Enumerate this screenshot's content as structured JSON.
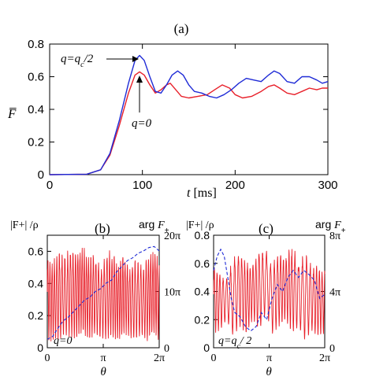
{
  "chart_data": [
    {
      "panel": "(a)",
      "type": "line",
      "title": "(a)",
      "ylabel": "F̅",
      "xlabel": "t [ms]",
      "xlim": [
        0,
        300
      ],
      "ylim": [
        0,
        0.8
      ],
      "xticks": [
        "0",
        "100",
        "200",
        "300"
      ],
      "yticks": [
        "0",
        "0.2",
        "0.4",
        "0.6",
        "0.8"
      ],
      "grid": false,
      "annotations": [
        {
          "text": "q=q_c/2",
          "display": "q=qc/2"
        },
        {
          "text": "q=0",
          "display": "q=0"
        }
      ],
      "series": [
        {
          "name": "q=0",
          "color": "#e8202a",
          "points": [
            [
              0,
              0
            ],
            [
              40,
              0.003
            ],
            [
              55,
              0.03
            ],
            [
              65,
              0.12
            ],
            [
              75,
              0.3
            ],
            [
              85,
              0.5
            ],
            [
              92,
              0.61
            ],
            [
              97,
              0.63
            ],
            [
              102,
              0.61
            ],
            [
              108,
              0.55
            ],
            [
              114,
              0.5
            ],
            [
              120,
              0.52
            ],
            [
              126,
              0.55
            ],
            [
              130,
              0.56
            ],
            [
              136,
              0.52
            ],
            [
              142,
              0.48
            ],
            [
              150,
              0.47
            ],
            [
              160,
              0.48
            ],
            [
              170,
              0.49
            ],
            [
              178,
              0.52
            ],
            [
              186,
              0.55
            ],
            [
              194,
              0.53
            ],
            [
              200,
              0.49
            ],
            [
              208,
              0.47
            ],
            [
              218,
              0.48
            ],
            [
              228,
              0.51
            ],
            [
              236,
              0.54
            ],
            [
              242,
              0.55
            ],
            [
              248,
              0.53
            ],
            [
              256,
              0.5
            ],
            [
              264,
              0.49
            ],
            [
              272,
              0.51
            ],
            [
              280,
              0.53
            ],
            [
              288,
              0.52
            ],
            [
              294,
              0.53
            ],
            [
              300,
              0.53
            ]
          ]
        },
        {
          "name": "q=q_c/2",
          "color": "#1f2bd6",
          "points": [
            [
              0,
              0
            ],
            [
              40,
              0.003
            ],
            [
              55,
              0.03
            ],
            [
              65,
              0.13
            ],
            [
              75,
              0.33
            ],
            [
              85,
              0.56
            ],
            [
              92,
              0.7
            ],
            [
              97,
              0.73
            ],
            [
              102,
              0.7
            ],
            [
              108,
              0.6
            ],
            [
              114,
              0.51
            ],
            [
              120,
              0.5
            ],
            [
              126,
              0.55
            ],
            [
              132,
              0.61
            ],
            [
              138,
              0.635
            ],
            [
              144,
              0.61
            ],
            [
              150,
              0.55
            ],
            [
              156,
              0.51
            ],
            [
              164,
              0.5
            ],
            [
              172,
              0.48
            ],
            [
              180,
              0.47
            ],
            [
              188,
              0.49
            ],
            [
              196,
              0.52
            ],
            [
              204,
              0.56
            ],
            [
              212,
              0.59
            ],
            [
              220,
              0.58
            ],
            [
              228,
              0.57
            ],
            [
              236,
              0.61
            ],
            [
              242,
              0.635
            ],
            [
              248,
              0.62
            ],
            [
              256,
              0.57
            ],
            [
              264,
              0.56
            ],
            [
              272,
              0.6
            ],
            [
              280,
              0.6
            ],
            [
              288,
              0.58
            ],
            [
              294,
              0.56
            ],
            [
              300,
              0.57
            ]
          ]
        }
      ]
    },
    {
      "panel": "(b)",
      "type": "line",
      "title": "(b)",
      "ylabel_left": "|F+| /ρ",
      "ylabel_right": "arg F+",
      "xlabel": "θ",
      "xlim": [
        0,
        6.283
      ],
      "ylim_left": [
        0,
        0.7
      ],
      "ylim_right": [
        0,
        20
      ],
      "xticks": [
        "0",
        "π",
        "2π"
      ],
      "yticks_left": [
        "0",
        "0.2",
        "0.4",
        "0.6"
      ],
      "yticks_right": [
        "0",
        "10π",
        "20π"
      ],
      "annotation": "q=0",
      "series": [
        {
          "name": "|F+|/ρ",
          "color": "#e8202a",
          "style": "solid",
          "axis": "left",
          "envelope_min": [
            0.02,
            0.05,
            0.04,
            0.08,
            0.06,
            0.05,
            0.1,
            0.04,
            0.08,
            0.06,
            0.05,
            0.07,
            0.04,
            0.09,
            0.06,
            0.05,
            0.08,
            0.04,
            0.1,
            0.03
          ],
          "envelope_max": [
            0.6,
            0.55,
            0.62,
            0.58,
            0.65,
            0.6,
            0.66,
            0.57,
            0.6,
            0.52,
            0.58,
            0.63,
            0.55,
            0.6,
            0.5,
            0.56,
            0.52,
            0.58,
            0.62,
            0.6
          ],
          "cycles": 46
        },
        {
          "name": "arg F+",
          "color": "#1f2bd6",
          "style": "dashed",
          "axis": "right",
          "points": [
            [
              0,
              1.5
            ],
            [
              0.3,
              2
            ],
            [
              0.6,
              3.5
            ],
            [
              0.9,
              4.8
            ],
            [
              1.2,
              5.5
            ],
            [
              1.5,
              6.5
            ],
            [
              1.8,
              7.5
            ],
            [
              2.1,
              8.5
            ],
            [
              2.4,
              9
            ],
            [
              2.7,
              10
            ],
            [
              3.0,
              10.5
            ],
            [
              3.3,
              11.5
            ],
            [
              3.6,
              12
            ],
            [
              3.9,
              13.5
            ],
            [
              4.2,
              14.5
            ],
            [
              4.5,
              15.5
            ],
            [
              4.8,
              16
            ],
            [
              5.1,
              16.8
            ],
            [
              5.4,
              17.2
            ],
            [
              5.7,
              17.8
            ],
            [
              6.0,
              18
            ],
            [
              6.283,
              17.2
            ]
          ]
        }
      ]
    },
    {
      "panel": "(c)",
      "type": "line",
      "title": "(c)",
      "ylabel_left": "|F+| /ρ",
      "ylabel_right": "arg F+",
      "xlabel": "θ",
      "xlim": [
        0,
        6.283
      ],
      "ylim_left": [
        0,
        0.8
      ],
      "ylim_right": [
        0,
        8
      ],
      "xticks": [
        "0",
        "π",
        "2π"
      ],
      "yticks_left": [
        "0",
        "0.2",
        "0.4",
        "0.6",
        "0.8"
      ],
      "yticks_right": [
        "0",
        "4π",
        "8π"
      ],
      "annotation": "q=q_c/ 2",
      "series": [
        {
          "name": "|F+|/ρ",
          "color": "#e8202a",
          "style": "solid",
          "axis": "left",
          "envelope_min": [
            0.1,
            0.12,
            0.2,
            0.08,
            0.15,
            0.1,
            0.2,
            0.12,
            0.25,
            0.1,
            0.15,
            0.2,
            0.1,
            0.15,
            0.05,
            0.12,
            0.08,
            0.1
          ],
          "envelope_max": [
            0.6,
            0.55,
            0.5,
            0.65,
            0.7,
            0.62,
            0.6,
            0.7,
            0.72,
            0.6,
            0.7,
            0.65,
            0.75,
            0.62,
            0.7,
            0.6,
            0.58,
            0.6
          ],
          "cycles": 34
        },
        {
          "name": "arg F+",
          "color": "#1f2bd6",
          "style": "dashed",
          "axis": "right",
          "points": [
            [
              0,
              5.5
            ],
            [
              0.2,
              6.5
            ],
            [
              0.4,
              7
            ],
            [
              0.6,
              6.5
            ],
            [
              0.8,
              5
            ],
            [
              1.0,
              3.5
            ],
            [
              1.2,
              2.5
            ],
            [
              1.5,
              2.2
            ],
            [
              1.8,
              1.5
            ],
            [
              2.1,
              1.2
            ],
            [
              2.4,
              1.5
            ],
            [
              2.7,
              2.5
            ],
            [
              3.0,
              2.0
            ],
            [
              3.3,
              3.5
            ],
            [
              3.6,
              4.5
            ],
            [
              3.9,
              4.0
            ],
            [
              4.2,
              5.0
            ],
            [
              4.5,
              5.5
            ],
            [
              4.8,
              5.0
            ],
            [
              5.1,
              5.5
            ],
            [
              5.4,
              5.2
            ],
            [
              5.7,
              4.8
            ],
            [
              6.0,
              3.5
            ],
            [
              6.283,
              3.8
            ]
          ]
        }
      ]
    }
  ]
}
